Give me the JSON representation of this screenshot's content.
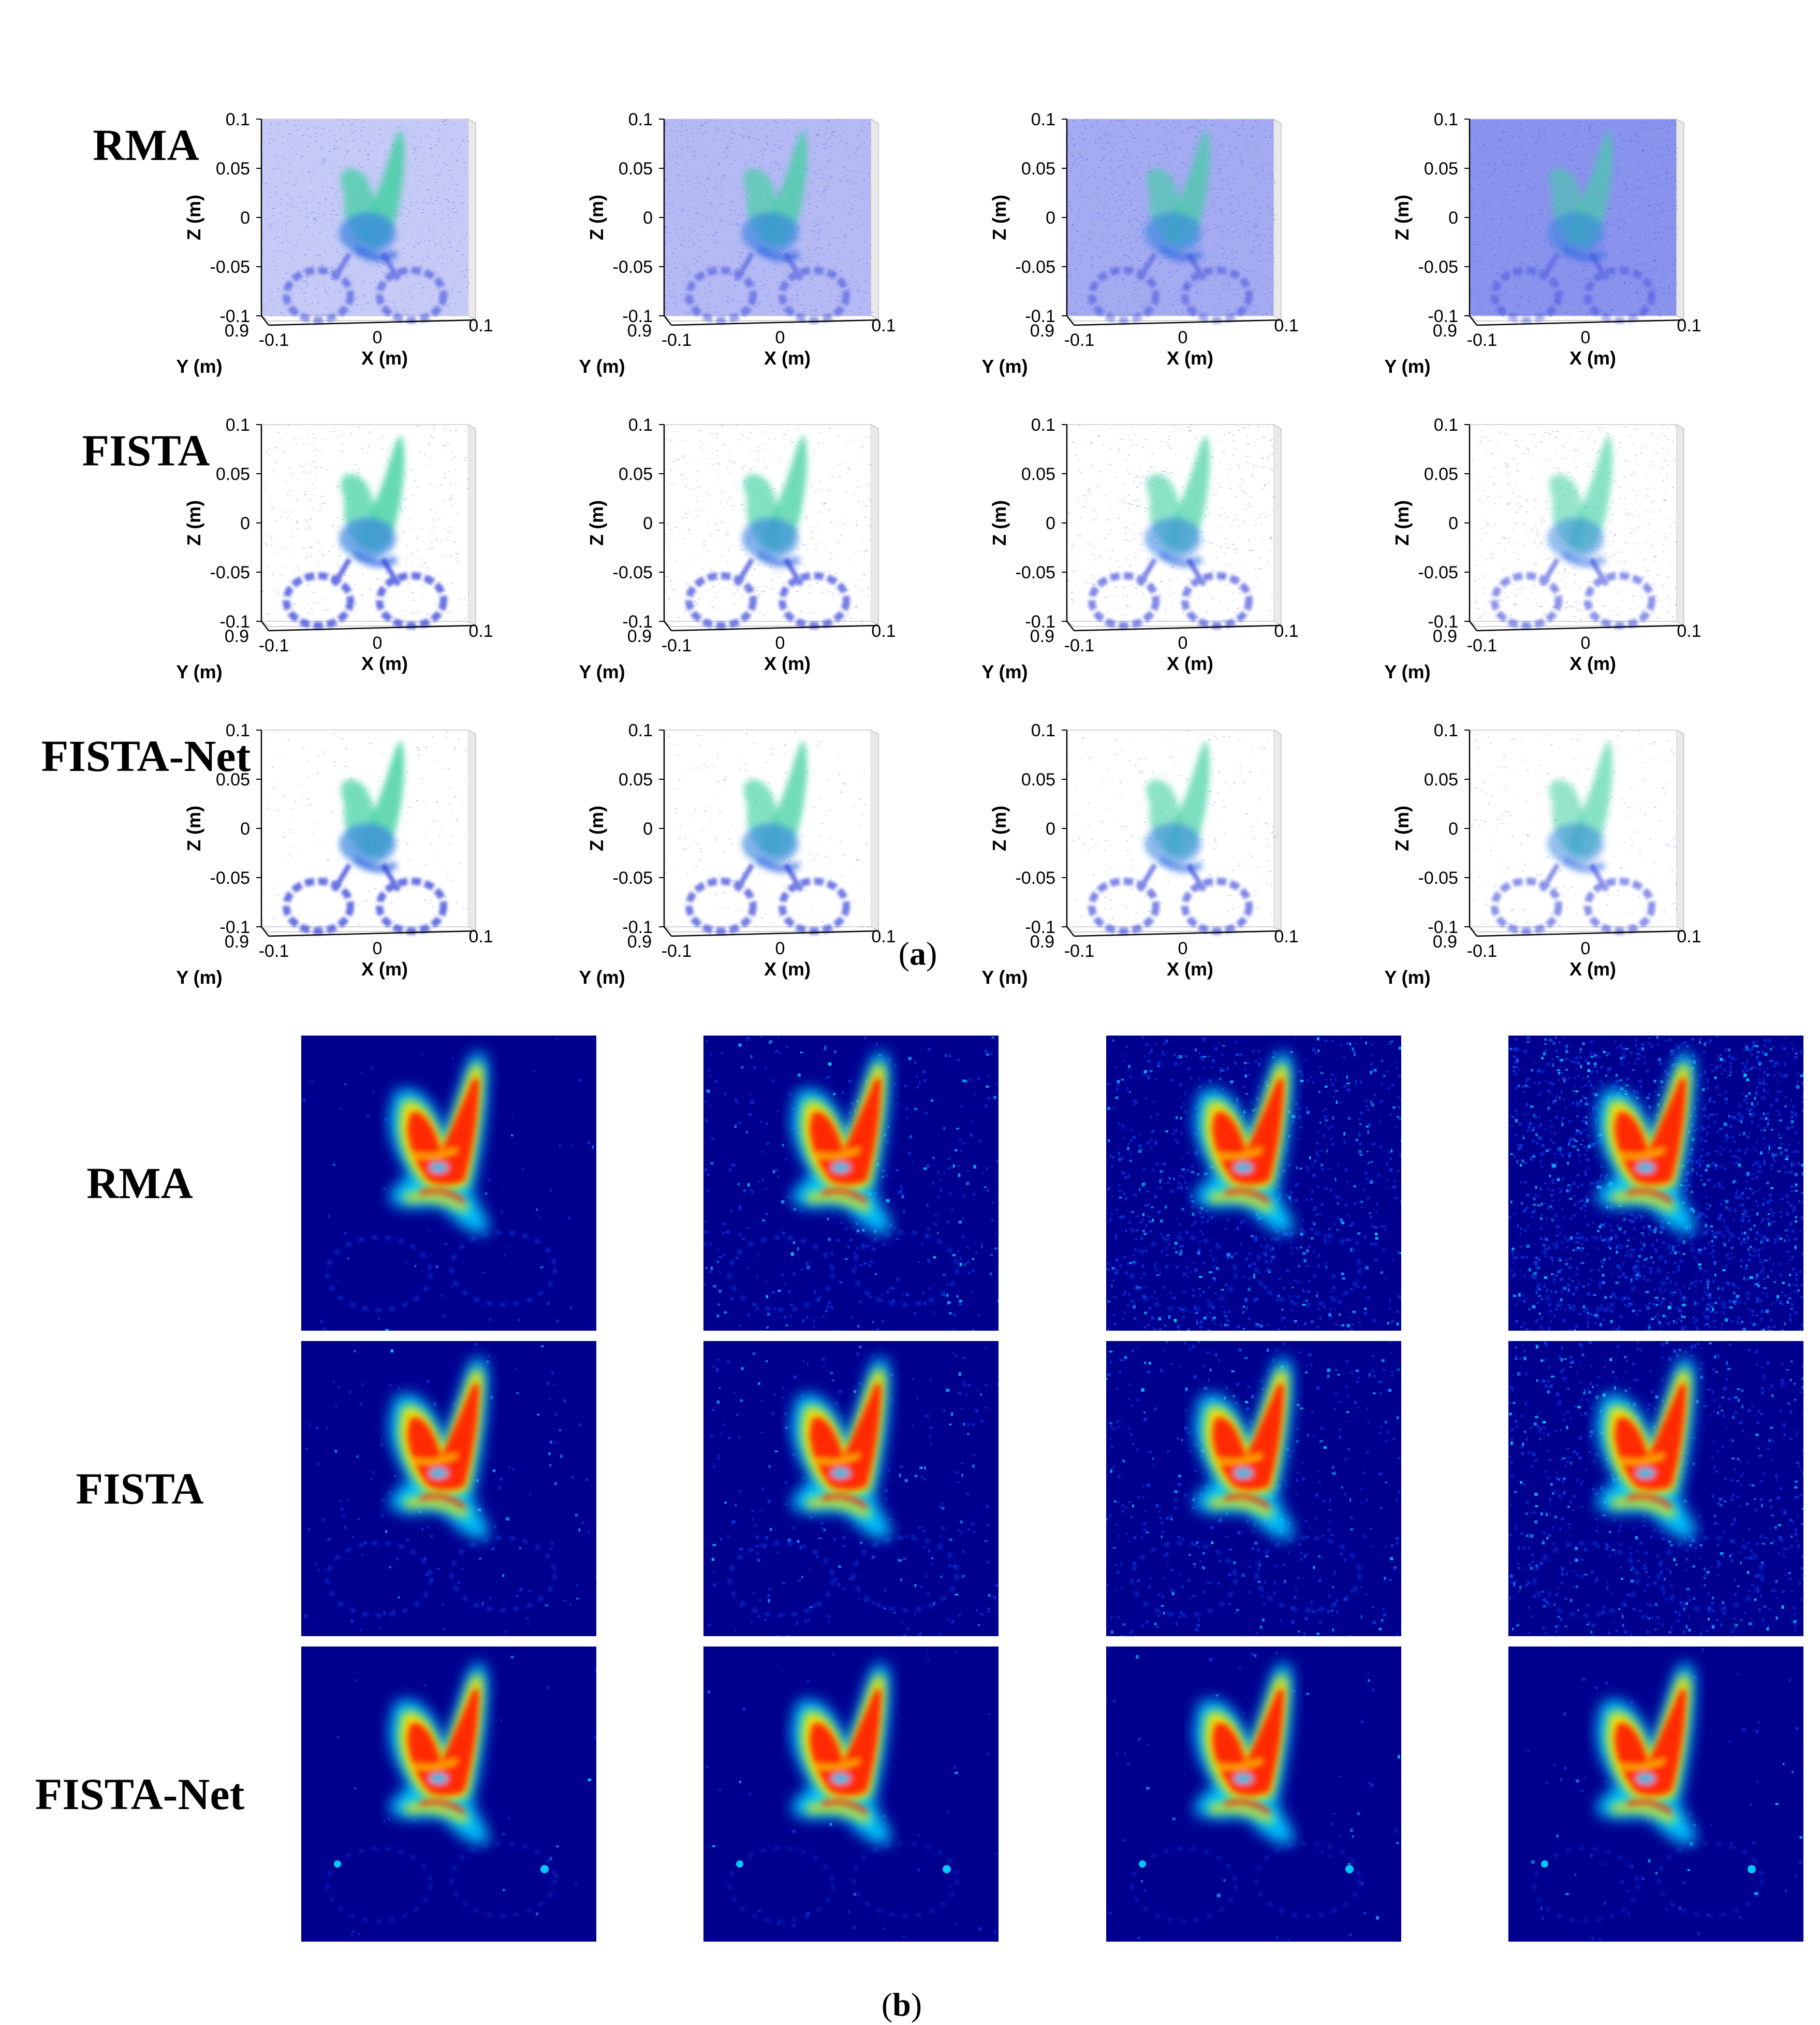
{
  "figure_a": {
    "caption_open": "(",
    "caption_letter": "a",
    "caption_close": ")",
    "rows": [
      "RMA",
      "FISTA",
      "FISTA-Net"
    ],
    "axes": {
      "z_ticks": [
        "0.1",
        "0.05",
        "0",
        "-0.05",
        "-0.1"
      ],
      "y_tick": "0.9",
      "x_ticks": [
        "-0.1",
        "0",
        "0.1"
      ],
      "z_label": "Z (m)",
      "y_label": "Y (m)",
      "x_label": "X (m)"
    }
  },
  "figure_b": {
    "caption_open": "(",
    "caption_letter": "b",
    "caption_close": ")",
    "rows": [
      "RMA",
      "FISTA",
      "FISTA-Net"
    ]
  },
  "colors": {
    "jet_background": "#00008f",
    "jet_red": "#ff2a00",
    "jet_yellow": "#f5e600",
    "jet_cyan": "#00c8ff",
    "volume_blue": "#3a4fe0",
    "volume_teal": "#3fd0a0"
  }
}
